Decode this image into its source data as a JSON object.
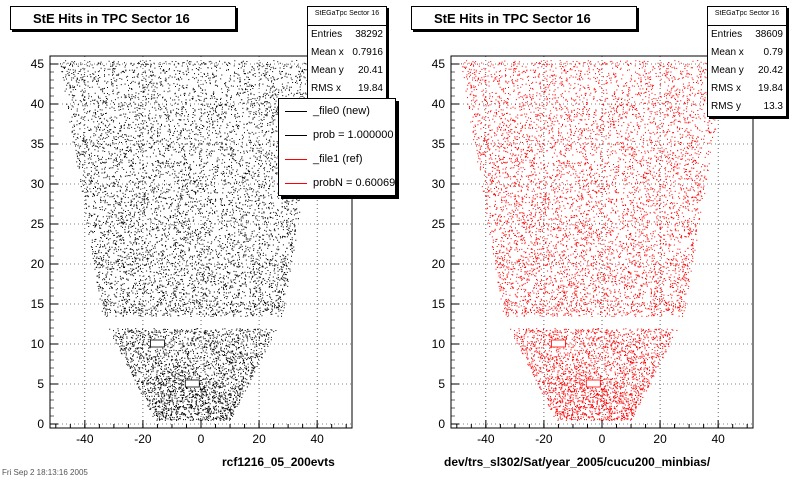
{
  "left": {
    "title": "StE Hits in TPC Sector 16",
    "stats": {
      "title": "StEGaTpc Sector 16",
      "rows": [
        {
          "label": "Entries",
          "value": "38292"
        },
        {
          "label": "Mean x",
          "value": "0.7916"
        },
        {
          "label": "Mean y",
          "value": "20.41"
        },
        {
          "label": "RMS x",
          "value": "19.84"
        }
      ]
    },
    "caption": "rcf1216_05_200evts",
    "color": "#000000"
  },
  "right": {
    "title": "StE Hits in TPC Sector 16",
    "stats": {
      "title": "StEGaTpc Sector 16",
      "rows": [
        {
          "label": "Entries",
          "value": "38609"
        },
        {
          "label": "Mean x",
          "value": "0.79"
        },
        {
          "label": "Mean y",
          "value": "20.42"
        },
        {
          "label": "RMS x",
          "value": "19.84"
        },
        {
          "label": "RMS y",
          "value": "13.3"
        }
      ]
    },
    "caption": "dev/trs_sl302/Sat/year_2005/cucu200_minbias/",
    "color": "#ff0000"
  },
  "legend": [
    {
      "label": "_file0 (new)",
      "color": "#000000"
    },
    {
      "label": "prob = 1.000000",
      "color": "#000000"
    },
    {
      "label": "_file1 (ref)",
      "color": "#ff0000"
    },
    {
      "label": "probN = 0.600698",
      "color": "#ff0000"
    }
  ],
  "footer": "Fri Sep 2 18:13:16 2005",
  "chart_data": [
    {
      "type": "scatter",
      "title": "StE Hits in TPC Sector 16",
      "xlabel": "rcf1216_05_200evts",
      "xlim": [
        -52,
        52
      ],
      "ylim": [
        -0.5,
        46
      ],
      "xticks": [
        -40,
        -20,
        0,
        20,
        40
      ],
      "yticks": [
        0,
        5,
        10,
        15,
        20,
        25,
        30,
        35,
        40,
        45
      ],
      "grid": true,
      "color": "#000000",
      "entries": 38292,
      "mean_x": 0.7916,
      "mean_y": 20.41,
      "rms_x": 19.84
    },
    {
      "type": "scatter",
      "title": "StE Hits in TPC Sector 16",
      "xlabel": "dev/trs_sl302/Sat/year_2005/cucu200_minbias/",
      "xlim": [
        -52,
        52
      ],
      "ylim": [
        -0.5,
        46
      ],
      "xticks": [
        -40,
        -20,
        0,
        20,
        40
      ],
      "yticks": [
        0,
        5,
        10,
        15,
        20,
        25,
        30,
        35,
        40,
        45
      ],
      "grid": true,
      "color": "#ff0000",
      "entries": 38609,
      "mean_x": 0.79,
      "mean_y": 20.42,
      "rms_x": 19.84,
      "rms_y": 13.3
    }
  ]
}
